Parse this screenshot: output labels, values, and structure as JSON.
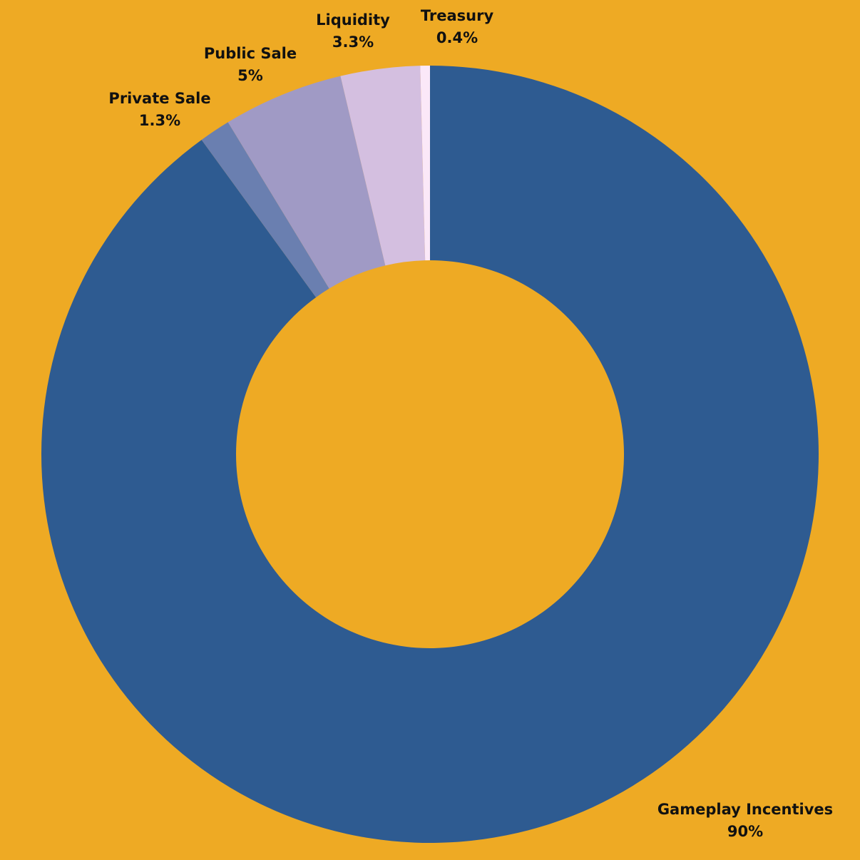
{
  "chart_data": {
    "type": "donut",
    "categories": [
      "Gameplay Incentives",
      "Private Sale",
      "Public Sale",
      "Liquidity",
      "Treasury"
    ],
    "values": [
      90,
      1.3,
      5,
      3.3,
      0.4
    ],
    "value_labels": [
      "90%",
      "1.3%",
      "5%",
      "3.3%",
      "0.4%"
    ],
    "colors": [
      "#2e5b91",
      "#6a7fb0",
      "#a09ac5",
      "#d4bfe0",
      "#fbe8f8"
    ]
  }
}
